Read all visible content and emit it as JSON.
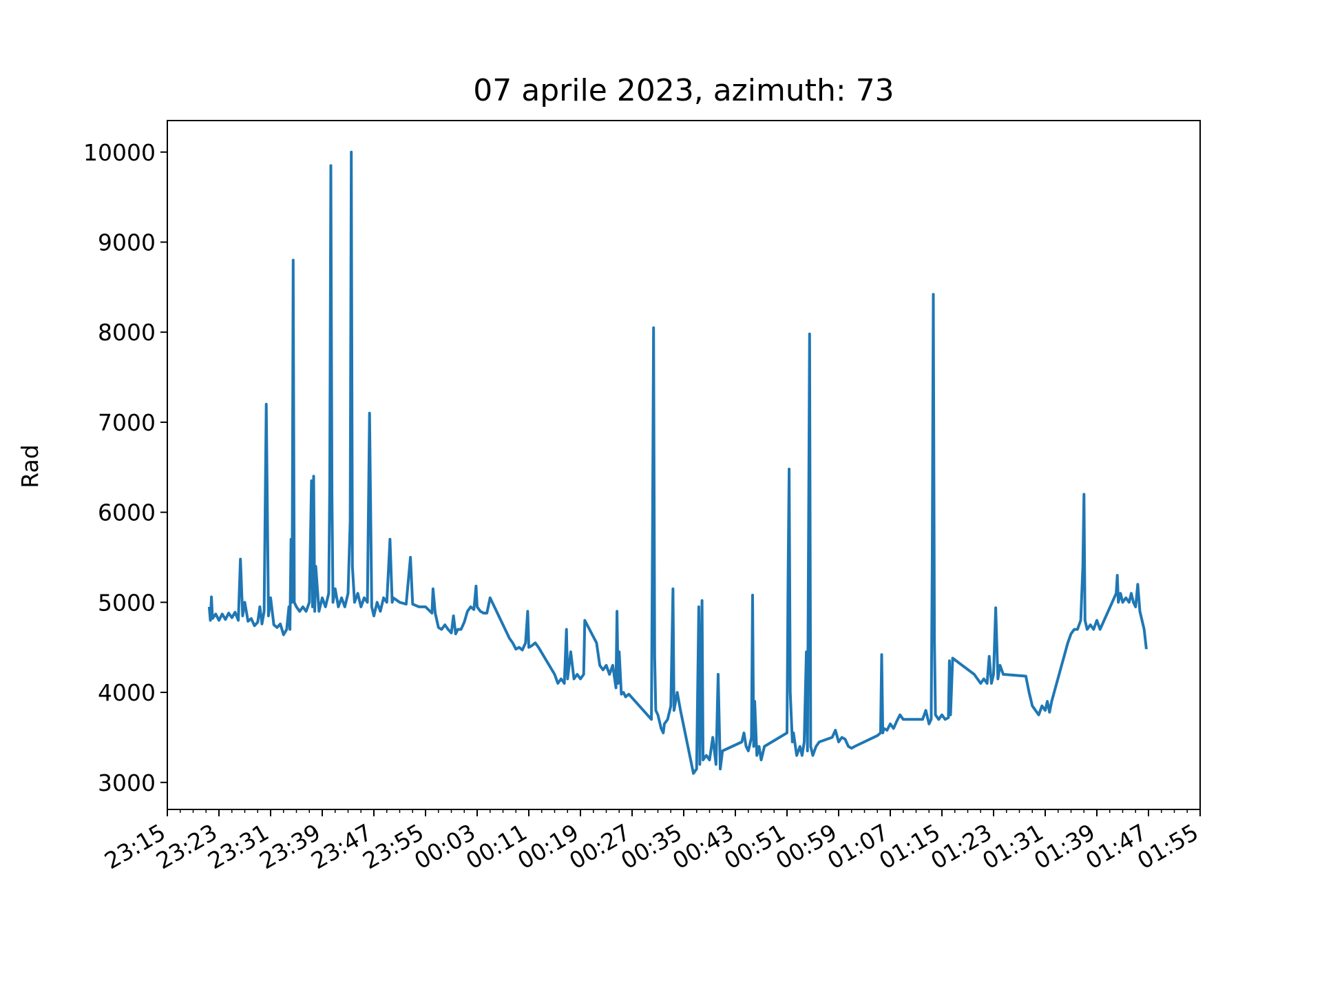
{
  "chart_data": {
    "type": "line",
    "title": "07 aprile 2023, azimuth: 73",
    "xlabel": "",
    "ylabel": "Rad",
    "x_unit": "time (HH:MM), 23:15 on 07 aprile 2023 through 01:55 next day",
    "xlim": [
      "23:15",
      "01:55"
    ],
    "ylim": [
      2700,
      10350
    ],
    "x_ticks": [
      "23:15",
      "23:23",
      "23:31",
      "23:39",
      "23:47",
      "23:55",
      "00:03",
      "00:11",
      "00:19",
      "00:27",
      "00:35",
      "00:43",
      "00:51",
      "00:59",
      "01:07",
      "01:15",
      "01:23",
      "01:31",
      "01:39",
      "01:47",
      "01:55"
    ],
    "y_ticks": [
      3000,
      4000,
      5000,
      6000,
      7000,
      8000,
      9000,
      10000
    ],
    "grid": false,
    "legend": "none",
    "color": "#1f77b4",
    "series": [
      {
        "points": [
          [
            "23:21:30",
            4950
          ],
          [
            "23:21:40",
            4800
          ],
          [
            "23:21:50",
            5060
          ],
          [
            "23:22:00",
            4820
          ],
          [
            "23:22:30",
            4870
          ],
          [
            "23:23:00",
            4800
          ],
          [
            "23:23:30",
            4870
          ],
          [
            "23:24:00",
            4810
          ],
          [
            "23:24:30",
            4880
          ],
          [
            "23:25:00",
            4830
          ],
          [
            "23:25:30",
            4890
          ],
          [
            "23:26:00",
            4800
          ],
          [
            "23:26:20",
            5480
          ],
          [
            "23:26:40",
            4850
          ],
          [
            "23:27:00",
            5000
          ],
          [
            "23:27:30",
            4790
          ],
          [
            "23:28:00",
            4820
          ],
          [
            "23:28:30",
            4740
          ],
          [
            "23:29:00",
            4780
          ],
          [
            "23:29:20",
            4950
          ],
          [
            "23:29:40",
            4760
          ],
          [
            "23:30:00",
            4900
          ],
          [
            "23:30:20",
            7200
          ],
          [
            "23:30:40",
            4850
          ],
          [
            "23:31:00",
            5050
          ],
          [
            "23:31:30",
            4750
          ],
          [
            "23:32:00",
            4720
          ],
          [
            "23:32:30",
            4760
          ],
          [
            "23:33:00",
            4640
          ],
          [
            "23:33:30",
            4700
          ],
          [
            "23:33:50",
            4950
          ],
          [
            "23:34:00",
            4700
          ],
          [
            "23:34:10",
            5700
          ],
          [
            "23:34:20",
            5000
          ],
          [
            "23:34:30",
            8800
          ],
          [
            "23:34:40",
            5000
          ],
          [
            "23:35:00",
            4950
          ],
          [
            "23:35:30",
            4900
          ],
          [
            "23:36:00",
            4950
          ],
          [
            "23:36:30",
            4900
          ],
          [
            "23:37:00",
            5000
          ],
          [
            "23:37:20",
            6350
          ],
          [
            "23:37:30",
            4950
          ],
          [
            "23:37:40",
            6400
          ],
          [
            "23:37:50",
            4900
          ],
          [
            "23:38:00",
            5400
          ],
          [
            "23:38:30",
            4900
          ],
          [
            "23:39:00",
            5050
          ],
          [
            "23:39:30",
            4950
          ],
          [
            "23:40:00",
            5100
          ],
          [
            "23:40:10",
            6300
          ],
          [
            "23:40:20",
            9850
          ],
          [
            "23:40:30",
            6200
          ],
          [
            "23:40:40",
            5000
          ],
          [
            "23:41:00",
            5150
          ],
          [
            "23:41:30",
            4950
          ],
          [
            "23:42:00",
            5050
          ],
          [
            "23:42:30",
            4950
          ],
          [
            "23:43:00",
            5100
          ],
          [
            "23:43:20",
            5900
          ],
          [
            "23:43:30",
            10000
          ],
          [
            "23:43:40",
            5400
          ],
          [
            "23:44:00",
            5000
          ],
          [
            "23:44:30",
            5100
          ],
          [
            "23:45:00",
            4950
          ],
          [
            "23:45:30",
            5050
          ],
          [
            "23:46:00",
            5000
          ],
          [
            "23:46:20",
            7100
          ],
          [
            "23:46:40",
            4950
          ],
          [
            "23:47:00",
            4850
          ],
          [
            "23:47:30",
            5000
          ],
          [
            "23:48:00",
            4900
          ],
          [
            "23:48:30",
            5050
          ],
          [
            "23:49:00",
            5000
          ],
          [
            "23:49:30",
            5700
          ],
          [
            "23:49:50",
            5000
          ],
          [
            "23:50:00",
            5050
          ],
          [
            "23:51:00",
            5000
          ],
          [
            "23:52:00",
            4980
          ],
          [
            "23:52:40",
            5500
          ],
          [
            "23:53:00",
            4980
          ],
          [
            "23:54:00",
            4950
          ],
          [
            "23:55:00",
            4950
          ],
          [
            "23:56:00",
            4880
          ],
          [
            "23:56:10",
            5150
          ],
          [
            "23:56:30",
            4880
          ],
          [
            "23:57:00",
            4720
          ],
          [
            "23:57:30",
            4700
          ],
          [
            "23:58:00",
            4750
          ],
          [
            "23:58:30",
            4700
          ],
          [
            "23:59:00",
            4660
          ],
          [
            "23:59:20",
            4850
          ],
          [
            "23:59:40",
            4650
          ],
          [
            "00:00:00",
            4700
          ],
          [
            "00:00:30",
            4700
          ],
          [
            "00:01:00",
            4780
          ],
          [
            "00:01:30",
            4900
          ],
          [
            "00:02:00",
            4950
          ],
          [
            "00:02:30",
            4920
          ],
          [
            "00:02:50",
            5180
          ],
          [
            "00:03:00",
            4950
          ],
          [
            "00:03:30",
            4900
          ],
          [
            "00:04:00",
            4880
          ],
          [
            "00:04:30",
            4880
          ],
          [
            "00:05:00",
            5050
          ],
          [
            "00:08:00",
            4600
          ],
          [
            "00:08:30",
            4550
          ],
          [
            "00:09:00",
            4480
          ],
          [
            "00:09:30",
            4500
          ],
          [
            "00:10:00",
            4470
          ],
          [
            "00:10:30",
            4550
          ],
          [
            "00:10:50",
            4900
          ],
          [
            "00:11:00",
            4500
          ],
          [
            "00:11:30",
            4520
          ],
          [
            "00:12:00",
            4550
          ],
          [
            "00:12:30",
            4500
          ],
          [
            "00:15:00",
            4200
          ],
          [
            "00:15:30",
            4100
          ],
          [
            "00:16:00",
            4150
          ],
          [
            "00:16:30",
            4100
          ],
          [
            "00:16:50",
            4700
          ],
          [
            "00:17:00",
            4150
          ],
          [
            "00:17:30",
            4450
          ],
          [
            "00:18:00",
            4150
          ],
          [
            "00:18:30",
            4200
          ],
          [
            "00:19:00",
            4150
          ],
          [
            "00:19:30",
            4200
          ],
          [
            "00:19:40",
            4800
          ],
          [
            "00:21:30",
            4550
          ],
          [
            "00:22:00",
            4300
          ],
          [
            "00:22:30",
            4250
          ],
          [
            "00:23:00",
            4300
          ],
          [
            "00:23:30",
            4200
          ],
          [
            "00:24:00",
            4300
          ],
          [
            "00:24:30",
            4050
          ],
          [
            "00:24:40",
            4900
          ],
          [
            "00:24:50",
            4100
          ],
          [
            "00:25:00",
            4450
          ],
          [
            "00:25:20",
            3980
          ],
          [
            "00:25:40",
            4000
          ],
          [
            "00:26:00",
            3950
          ],
          [
            "00:26:30",
            3980
          ],
          [
            "00:30:00",
            3700
          ],
          [
            "00:30:10",
            5800
          ],
          [
            "00:30:20",
            8050
          ],
          [
            "00:30:30",
            4400
          ],
          [
            "00:30:40",
            3800
          ],
          [
            "00:31:00",
            3750
          ],
          [
            "00:31:30",
            3600
          ],
          [
            "00:31:50",
            3550
          ],
          [
            "00:32:00",
            3650
          ],
          [
            "00:32:30",
            3700
          ],
          [
            "00:33:00",
            3850
          ],
          [
            "00:33:20",
            5150
          ],
          [
            "00:33:30",
            3800
          ],
          [
            "00:34:00",
            4000
          ],
          [
            "00:34:30",
            3800
          ],
          [
            "00:36:30",
            3100
          ],
          [
            "00:37:00",
            3150
          ],
          [
            "00:37:20",
            4950
          ],
          [
            "00:37:30",
            3200
          ],
          [
            "00:37:50",
            5020
          ],
          [
            "00:38:00",
            3250
          ],
          [
            "00:38:30",
            3300
          ],
          [
            "00:39:00",
            3250
          ],
          [
            "00:39:30",
            3500
          ],
          [
            "00:40:00",
            3200
          ],
          [
            "00:40:20",
            4200
          ],
          [
            "00:40:40",
            3150
          ],
          [
            "00:41:00",
            3350
          ],
          [
            "00:44:00",
            3450
          ],
          [
            "00:44:20",
            3550
          ],
          [
            "00:44:40",
            3400
          ],
          [
            "00:45:00",
            3350
          ],
          [
            "00:45:30",
            3500
          ],
          [
            "00:45:40",
            5080
          ],
          [
            "00:45:50",
            3400
          ],
          [
            "00:46:00",
            3900
          ],
          [
            "00:46:20",
            3300
          ],
          [
            "00:46:40",
            3400
          ],
          [
            "00:47:00",
            3250
          ],
          [
            "00:47:30",
            3400
          ],
          [
            "00:51:00",
            3550
          ],
          [
            "00:51:10",
            5300
          ],
          [
            "00:51:20",
            6480
          ],
          [
            "00:51:30",
            4000
          ],
          [
            "00:51:50",
            3450
          ],
          [
            "00:52:00",
            3550
          ],
          [
            "00:52:30",
            3300
          ],
          [
            "00:53:00",
            3400
          ],
          [
            "00:53:20",
            3300
          ],
          [
            "00:53:40",
            3450
          ],
          [
            "00:54:00",
            4450
          ],
          [
            "00:54:10",
            3350
          ],
          [
            "00:54:30",
            7980
          ],
          [
            "00:54:40",
            3400
          ],
          [
            "00:55:00",
            3300
          ],
          [
            "00:55:30",
            3400
          ],
          [
            "00:56:00",
            3450
          ],
          [
            "00:58:00",
            3500
          ],
          [
            "00:58:30",
            3580
          ],
          [
            "00:59:00",
            3450
          ],
          [
            "00:59:30",
            3500
          ],
          [
            "01:00:00",
            3480
          ],
          [
            "01:00:30",
            3400
          ],
          [
            "01:01:00",
            3380
          ],
          [
            "01:01:30",
            3400
          ],
          [
            "01:05:00",
            3520
          ],
          [
            "01:05:30",
            3550
          ],
          [
            "01:05:40",
            4420
          ],
          [
            "01:05:50",
            3550
          ],
          [
            "01:06:00",
            3600
          ],
          [
            "01:06:30",
            3580
          ],
          [
            "01:07:00",
            3650
          ],
          [
            "01:07:30",
            3600
          ],
          [
            "01:08:00",
            3680
          ],
          [
            "01:08:30",
            3750
          ],
          [
            "01:09:00",
            3700
          ],
          [
            "01:12:00",
            3700
          ],
          [
            "01:12:30",
            3800
          ],
          [
            "01:13:00",
            3650
          ],
          [
            "01:13:20",
            3700
          ],
          [
            "01:13:30",
            5400
          ],
          [
            "01:13:40",
            8420
          ],
          [
            "01:13:50",
            4600
          ],
          [
            "01:14:00",
            3750
          ],
          [
            "01:14:30",
            3700
          ],
          [
            "01:15:00",
            3750
          ],
          [
            "01:15:30",
            3700
          ],
          [
            "01:16:00",
            3720
          ],
          [
            "01:16:10",
            4350
          ],
          [
            "01:16:20",
            3750
          ],
          [
            "01:16:40",
            4380
          ],
          [
            "01:20:00",
            4200
          ],
          [
            "01:20:30",
            4150
          ],
          [
            "01:21:00",
            4100
          ],
          [
            "01:21:30",
            4150
          ],
          [
            "01:22:00",
            4100
          ],
          [
            "01:22:20",
            4400
          ],
          [
            "01:22:40",
            4100
          ],
          [
            "01:23:00",
            4200
          ],
          [
            "01:23:20",
            4940
          ],
          [
            "01:23:40",
            4150
          ],
          [
            "01:24:00",
            4300
          ],
          [
            "01:24:30",
            4200
          ],
          [
            "01:28:00",
            4180
          ],
          [
            "01:28:30",
            4000
          ],
          [
            "01:29:00",
            3850
          ],
          [
            "01:29:30",
            3800
          ],
          [
            "01:30:00",
            3750
          ],
          [
            "01:30:30",
            3850
          ],
          [
            "01:31:00",
            3800
          ],
          [
            "01:31:20",
            3900
          ],
          [
            "01:31:40",
            3780
          ],
          [
            "01:32:00",
            3900
          ],
          [
            "01:34:30",
            4550
          ],
          [
            "01:35:00",
            4650
          ],
          [
            "01:35:30",
            4700
          ],
          [
            "01:36:00",
            4700
          ],
          [
            "01:36:30",
            4800
          ],
          [
            "01:36:50",
            5400
          ],
          [
            "01:37:00",
            6200
          ],
          [
            "01:37:10",
            4800
          ],
          [
            "01:37:30",
            4700
          ],
          [
            "01:38:00",
            4750
          ],
          [
            "01:38:30",
            4700
          ],
          [
            "01:39:00",
            4800
          ],
          [
            "01:39:30",
            4700
          ],
          [
            "01:42:00",
            5100
          ],
          [
            "01:42:10",
            5300
          ],
          [
            "01:42:20",
            5000
          ],
          [
            "01:42:40",
            5100
          ],
          [
            "01:43:00",
            5000
          ],
          [
            "01:43:30",
            5050
          ],
          [
            "01:44:00",
            5000
          ],
          [
            "01:44:20",
            5100
          ],
          [
            "01:44:40",
            5000
          ],
          [
            "01:45:00",
            4950
          ],
          [
            "01:45:20",
            5200
          ],
          [
            "01:45:40",
            4900
          ],
          [
            "01:46:00",
            4800
          ],
          [
            "01:46:20",
            4700
          ],
          [
            "01:46:40",
            4480
          ]
        ]
      }
    ]
  }
}
